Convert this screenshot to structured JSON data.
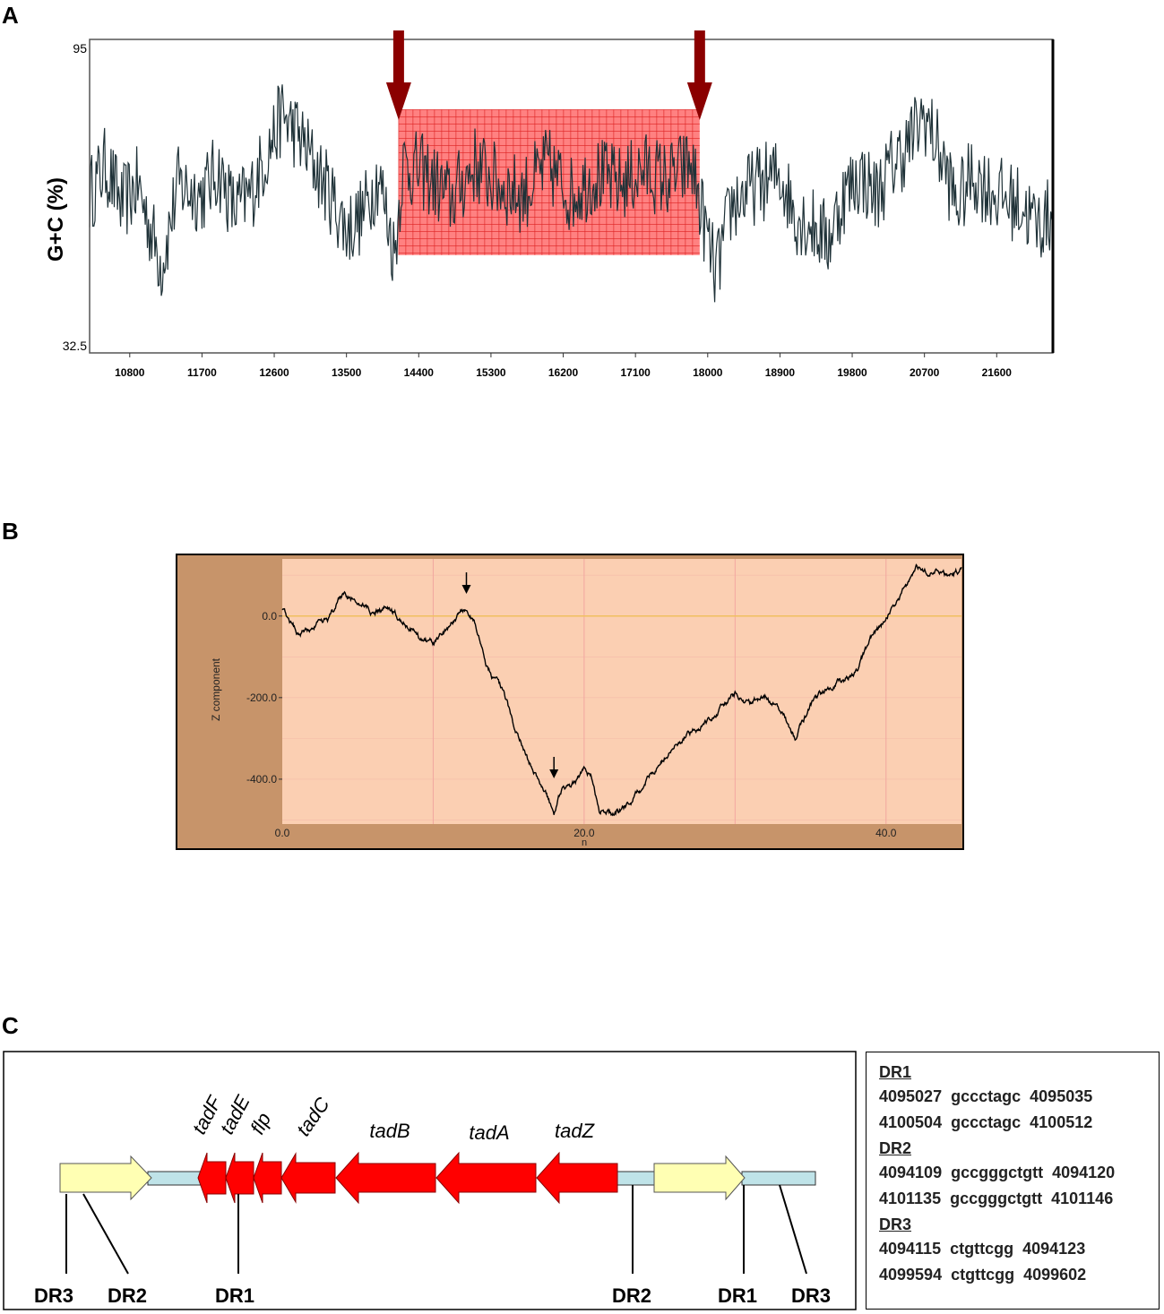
{
  "panels": [
    "A",
    "B",
    "C"
  ],
  "chart_data": [
    {
      "type": "line",
      "panel": "A",
      "ylabel": "G+C (%)",
      "ylim": [
        32.5,
        95
      ],
      "ytick_labels": [
        "95",
        "32.5"
      ],
      "xlim": [
        10300,
        22300
      ],
      "xticks": [
        10800,
        11700,
        12600,
        13500,
        14400,
        15300,
        16200,
        17100,
        18000,
        18900,
        19800,
        20700,
        21600
      ],
      "highlight": {
        "x_start": 14150,
        "x_end": 17900,
        "y_low": 52,
        "y_high": 81,
        "color": "#ff6b6b"
      },
      "arrows_x": [
        14150,
        17900
      ],
      "arrow_color": "#8b0000",
      "line_color": "#1f3238",
      "series_profile": [
        [
          10300,
          64
        ],
        [
          10500,
          70
        ],
        [
          10700,
          62
        ],
        [
          10900,
          66
        ],
        [
          11100,
          55
        ],
        [
          11200,
          50
        ],
        [
          11400,
          66
        ],
        [
          11700,
          64
        ],
        [
          11900,
          69
        ],
        [
          12100,
          61
        ],
        [
          12300,
          64
        ],
        [
          12500,
          72
        ],
        [
          12700,
          80
        ],
        [
          12900,
          76
        ],
        [
          13100,
          70
        ],
        [
          13300,
          64
        ],
        [
          13500,
          57
        ],
        [
          13700,
          60
        ],
        [
          13900,
          68
        ],
        [
          14100,
          52
        ],
        [
          14200,
          70
        ],
        [
          14500,
          68
        ],
        [
          14800,
          63
        ],
        [
          15100,
          70
        ],
        [
          15400,
          66
        ],
        [
          15700,
          64
        ],
        [
          16000,
          70
        ],
        [
          16300,
          64
        ],
        [
          16600,
          68
        ],
        [
          16900,
          66
        ],
        [
          17200,
          69
        ],
        [
          17500,
          67
        ],
        [
          17800,
          70
        ],
        [
          18000,
          55
        ],
        [
          18100,
          48
        ],
        [
          18300,
          62
        ],
        [
          18600,
          66
        ],
        [
          18900,
          68
        ],
        [
          19100,
          60
        ],
        [
          19300,
          58
        ],
        [
          19500,
          55
        ],
        [
          19700,
          64
        ],
        [
          19900,
          68
        ],
        [
          20100,
          64
        ],
        [
          20300,
          70
        ],
        [
          20500,
          74
        ],
        [
          20700,
          80
        ],
        [
          20900,
          72
        ],
        [
          21100,
          62
        ],
        [
          21300,
          68
        ],
        [
          21600,
          64
        ],
        [
          21900,
          62
        ],
        [
          22100,
          58
        ],
        [
          22300,
          60
        ]
      ]
    },
    {
      "type": "line",
      "panel": "B",
      "ylabel": "Z component",
      "xlabel": "n",
      "xlim": [
        0,
        45
      ],
      "ylim": [
        -510,
        140
      ],
      "xticks": [
        0,
        20,
        40
      ],
      "xtick_labels": [
        "0.0",
        "20.0",
        "40.0"
      ],
      "yticks": [
        0,
        -200,
        -400
      ],
      "ytick_labels": [
        "0.0",
        "-200.0",
        "-400.0"
      ],
      "zero_line_color": "#f0c060",
      "arrows_x": [
        12.2,
        18.0
      ],
      "series_profile": [
        [
          0,
          20
        ],
        [
          1,
          -40
        ],
        [
          2,
          -30
        ],
        [
          3,
          -10
        ],
        [
          4,
          50
        ],
        [
          5,
          25
        ],
        [
          6,
          10
        ],
        [
          7,
          20
        ],
        [
          8,
          -10
        ],
        [
          9,
          -50
        ],
        [
          10,
          -65
        ],
        [
          11,
          -30
        ],
        [
          12,
          20
        ],
        [
          12.8,
          -20
        ],
        [
          13.5,
          -120
        ],
        [
          14.5,
          -180
        ],
        [
          15.5,
          -280
        ],
        [
          16.5,
          -370
        ],
        [
          17.5,
          -440
        ],
        [
          18,
          -480
        ],
        [
          18.5,
          -430
        ],
        [
          19.5,
          -410
        ],
        [
          20,
          -370
        ],
        [
          20.5,
          -400
        ],
        [
          21,
          -470
        ],
        [
          22,
          -490
        ],
        [
          23,
          -460
        ],
        [
          24,
          -410
        ],
        [
          25,
          -360
        ],
        [
          26,
          -320
        ],
        [
          27,
          -290
        ],
        [
          28,
          -260
        ],
        [
          29,
          -230
        ],
        [
          30,
          -190
        ],
        [
          31,
          -220
        ],
        [
          32,
          -200
        ],
        [
          33,
          -230
        ],
        [
          34,
          -300
        ],
        [
          35,
          -220
        ],
        [
          36,
          -180
        ],
        [
          37,
          -160
        ],
        [
          38,
          -140
        ],
        [
          39,
          -60
        ],
        [
          40,
          -10
        ],
        [
          41,
          50
        ],
        [
          42,
          120
        ],
        [
          43,
          110
        ],
        [
          44,
          100
        ],
        [
          45,
          110
        ]
      ]
    }
  ],
  "panelC": {
    "gene_labels": [
      "tadF",
      "tadE",
      "flp",
      "tadC",
      "tadB",
      "tadA",
      "tadZ"
    ],
    "dr_bottom_labels": [
      "DR3",
      "DR2",
      "DR1",
      "DR2",
      "DR1",
      "DR3"
    ],
    "colors": {
      "gene": "#ff0000",
      "mobile": "#ffffb3",
      "backbone": "#bfe3e8"
    },
    "direct_repeats": [
      {
        "name": "DR1",
        "rows": [
          {
            "start": "4095027",
            "seq": "gccctagc",
            "end": "4095035"
          },
          {
            "start": "4100504",
            "seq": "gccctagc",
            "end": "4100512"
          }
        ]
      },
      {
        "name": "DR2",
        "rows": [
          {
            "start": "4094109",
            "seq": "gccgggctgtt",
            "end": "4094120"
          },
          {
            "start": "4101135",
            "seq": "gccgggctgtt",
            "end": "4101146"
          }
        ]
      },
      {
        "name": "DR3",
        "rows": [
          {
            "start": "4094115",
            "seq": "ctgttcgg",
            "end": "4094123"
          },
          {
            "start": "4099594",
            "seq": "ctgttcgg",
            "end": "4099602"
          }
        ]
      }
    ]
  }
}
